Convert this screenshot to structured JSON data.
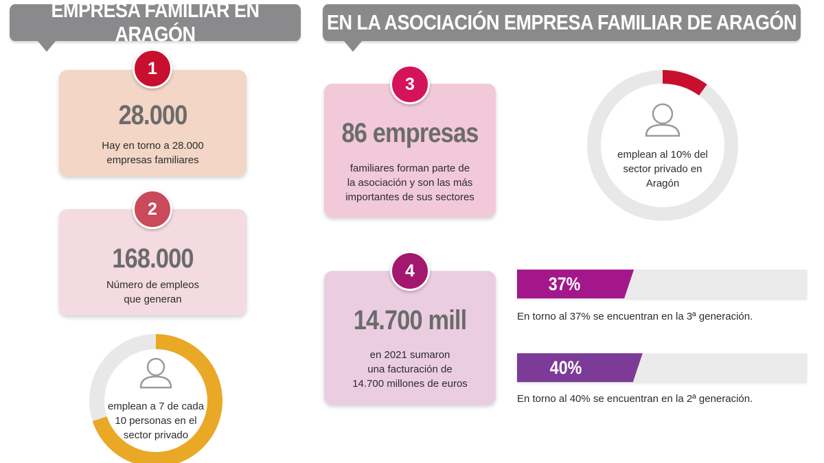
{
  "banners": {
    "left": "EMPRESA FAMILIAR EN ARAGÓN",
    "right": "EN LA ASOCIACIÓN EMPRESA FAMILIAR DE ARAGÓN"
  },
  "cards": [
    {
      "number": "1",
      "value": "28.000",
      "desc_line1": "Hay en torno a 28.000",
      "desc_line2": "empresas familiares",
      "desc_line3": "",
      "badge_color": "#c8102e"
    },
    {
      "number": "2",
      "value": "168.000",
      "desc_line1": "Número de empleos",
      "desc_line2": "que generan",
      "desc_line3": "",
      "badge_color": "#c94a5a"
    },
    {
      "number": "3",
      "value": "86 empresas",
      "desc_line1": "familiares forman parte de",
      "desc_line2": "la asociación y son las más",
      "desc_line3": "importantes de sus sectores",
      "badge_color": "#d4145a"
    },
    {
      "number": "4",
      "value": "14.700 mill",
      "desc_line1": "en 2021 sumaron",
      "desc_line2": "una facturación de",
      "desc_line3": "14.700 millones de euros",
      "badge_color": "#a3176f"
    }
  ],
  "rings": {
    "left": {
      "line1": "emplean a 7 de cada",
      "line2": "10 personas en el",
      "line3": "sector privado",
      "percent": 70,
      "color": "#e9a826",
      "track": "#e8e8e8"
    },
    "right": {
      "line1": "emplean al 10% del",
      "line2": "sector privado en",
      "line3": "Aragón",
      "percent": 10,
      "color": "#c8102e",
      "track": "#e8e8e8"
    }
  },
  "chart_data": {
    "type": "bar",
    "categories": [
      "En torno al 37% se encuentran en la 3ª generación.",
      "En torno al 40% se encuentran en la 2ª generación."
    ],
    "values": [
      37,
      40
    ],
    "value_labels": [
      "37%",
      "40%"
    ],
    "ylim": [
      0,
      100
    ],
    "colors": [
      "#a3178a",
      "#7c3b96"
    ]
  }
}
